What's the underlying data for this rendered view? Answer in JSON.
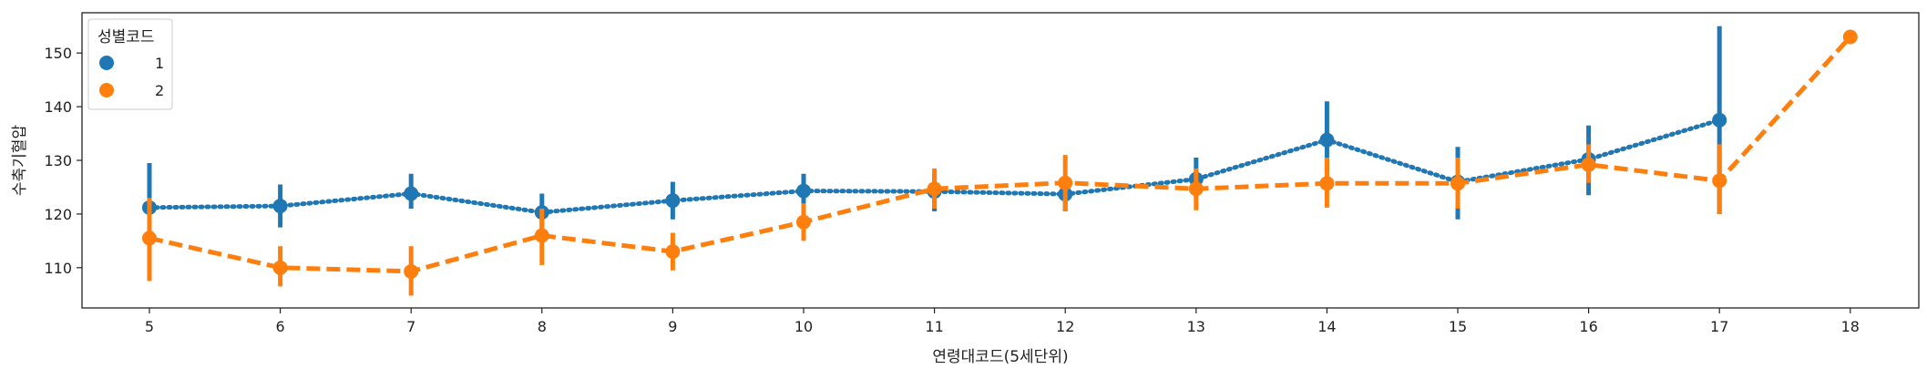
{
  "chart_data": {
    "type": "line",
    "title": "",
    "xlabel": "연령대코드(5세단위)",
    "ylabel": "수축기혈압",
    "categories": [
      "5",
      "6",
      "7",
      "8",
      "9",
      "10",
      "11",
      "12",
      "13",
      "14",
      "15",
      "16",
      "17",
      "18"
    ],
    "ylim": [
      102.5,
      157.5
    ],
    "yticks": [
      "110",
      "120",
      "130",
      "140",
      "150"
    ],
    "grid": false,
    "legend": {
      "title": "성별코드",
      "placement": "top-left"
    },
    "series": [
      {
        "name": "1",
        "color": "#1f77b4",
        "line_style": "dotted",
        "values": [
          121.2,
          121.5,
          123.8,
          120.3,
          122.5,
          124.3,
          124.2,
          123.7,
          126.5,
          133.8,
          126.0,
          130.2,
          137.5,
          null
        ],
        "ci_low": [
          114.5,
          117.5,
          121.0,
          117.0,
          119.0,
          121.5,
          120.5,
          120.5,
          123.0,
          127.5,
          119.0,
          123.5,
          120.0,
          null
        ],
        "ci_high": [
          129.5,
          125.5,
          127.5,
          123.8,
          126.0,
          127.5,
          127.5,
          127.0,
          130.5,
          141.0,
          132.5,
          136.5,
          155.0,
          null
        ]
      },
      {
        "name": "2",
        "color": "#ff7f0e",
        "line_style": "dashed",
        "values": [
          115.5,
          110.0,
          109.3,
          116.0,
          113.0,
          118.5,
          124.7,
          125.8,
          124.7,
          125.7,
          125.7,
          129.2,
          126.2,
          153.0
        ],
        "ci_low": [
          107.5,
          106.5,
          104.8,
          110.5,
          109.5,
          115.0,
          121.0,
          120.5,
          120.7,
          121.2,
          121.0,
          125.8,
          120.0,
          153.0
        ],
        "ci_high": [
          123.0,
          114.0,
          114.0,
          121.0,
          116.5,
          122.0,
          128.5,
          131.0,
          128.5,
          130.5,
          130.5,
          133.0,
          133.0,
          153.0
        ]
      }
    ]
  }
}
